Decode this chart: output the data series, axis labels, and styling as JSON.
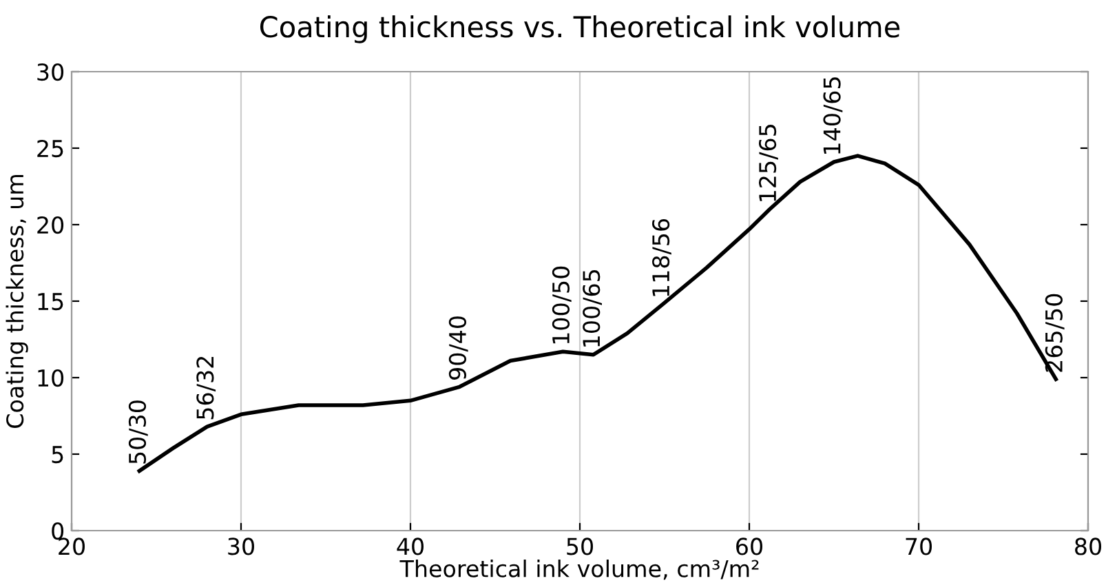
{
  "chart_data": {
    "type": "line",
    "title": "Coating thickness vs. Theoretical ink volume",
    "xlabel": "Theoretical ink volume, cm³/m²",
    "ylabel": "Coating thickness, um",
    "series": [
      {
        "color": "#000000",
        "x": [
          24.0,
          26.0,
          28.0,
          30.0,
          33.4,
          37.2,
          40.0,
          42.9,
          45.9,
          49.0,
          50.8,
          52.8,
          54.9,
          57.5,
          60.0,
          61.2,
          63.0,
          65.0,
          66.4,
          68.0,
          70.0,
          73.0,
          75.8,
          78.1
        ],
        "values": [
          3.9,
          5.4,
          6.8,
          7.6,
          8.2,
          8.2,
          8.5,
          9.4,
          11.1,
          11.7,
          11.5,
          12.9,
          14.8,
          17.2,
          19.7,
          21.0,
          22.8,
          24.1,
          24.5,
          24.0,
          22.6,
          18.7,
          14.2,
          9.9
        ]
      }
    ],
    "xlim": [
      20,
      80
    ],
    "ylim": [
      0,
      30
    ],
    "xticks": [
      20,
      30,
      40,
      50,
      60,
      70,
      80
    ],
    "yticks": [
      0,
      5,
      10,
      15,
      20,
      25,
      30
    ],
    "grid": "x",
    "line_style": "solid",
    "marker": "none",
    "annotations": [
      {
        "text": "50/30",
        "x": 24.0,
        "y": 3.9
      },
      {
        "text": "56/32",
        "x": 28.0,
        "y": 6.8
      },
      {
        "text": "90/40",
        "x": 42.9,
        "y": 9.4
      },
      {
        "text": "100/50",
        "x": 49.0,
        "y": 11.7
      },
      {
        "text": "100/65",
        "x": 50.8,
        "y": 11.5
      },
      {
        "text": "118/56",
        "x": 54.9,
        "y": 14.8
      },
      {
        "text": "125/65",
        "x": 61.2,
        "y": 21.0
      },
      {
        "text": "140/65",
        "x": 65.0,
        "y": 24.1
      },
      {
        "text": "265/50",
        "x": 78.1,
        "y": 9.9
      }
    ]
  }
}
